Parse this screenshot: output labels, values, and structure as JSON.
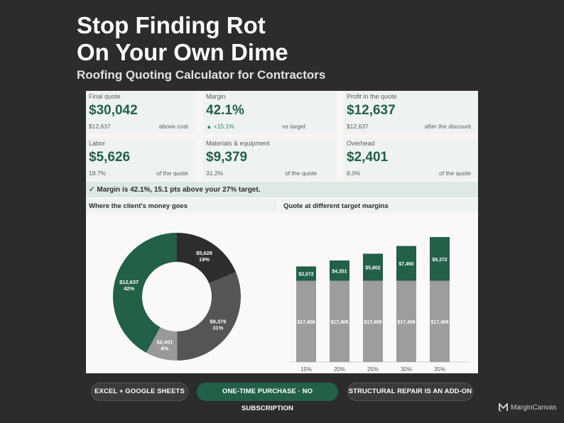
{
  "hero": {
    "title_line1": "Stop Finding Rot",
    "title_line2": "On Your Own Dime",
    "subtitle": "Roofing Quoting Calculator for Contractors"
  },
  "kpis": {
    "final_quote": {
      "label": "Final quote",
      "value": "$30,042",
      "sub_left": "$12,637",
      "sub_right": "above cost"
    },
    "margin": {
      "label": "Margin",
      "value": "42.1%",
      "sub_left": "▲ +15.1%",
      "sub_right": "vs target"
    },
    "profit": {
      "label": "Profit in the quote",
      "value": "$12,637",
      "sub_left": "$12,637",
      "sub_right": "after the discount"
    },
    "labor": {
      "label": "Labor",
      "value": "$5,626",
      "sub_left": "18.7%",
      "sub_right": "of the quote"
    },
    "materials": {
      "label": "Materials & equipment",
      "value": "$9,379",
      "sub_left": "31.2%",
      "sub_right": "of the quote"
    },
    "overhead": {
      "label": "Overhead",
      "value": "$2,401",
      "sub_left": "8.0%",
      "sub_right": "of the quote"
    }
  },
  "status": {
    "check": "✓",
    "message": "Margin is 42.1%, 15.1 pts above your 27% target."
  },
  "sections": {
    "donut_title": "Where the client's money goes",
    "bars_title": "Quote at different target margins"
  },
  "colors": {
    "green": "#226048",
    "charcoal": "#2d2d2d",
    "mid_gray": "#555555",
    "light_gray": "#999999",
    "bar_gray": "#9d9d9d"
  },
  "chart_data": [
    {
      "type": "pie",
      "title": "Where the client's money goes",
      "slices": [
        {
          "value": 5626,
          "label": "$5,626",
          "pct": "19%",
          "color": "#2d2d2d"
        },
        {
          "value": 9379,
          "label": "$9,379",
          "pct": "31%",
          "color": "#555555"
        },
        {
          "value": 2401,
          "label": "$2,401",
          "pct": "8%",
          "color": "#999999"
        },
        {
          "value": 12637,
          "label": "$12,637",
          "pct": "42%",
          "color": "#226048"
        }
      ]
    },
    {
      "type": "bar",
      "title": "Quote at different target margins",
      "categories": [
        "15%",
        "20%",
        "25%",
        "30%",
        "35%"
      ],
      "series": [
        {
          "values": [
            17406,
            17406,
            17406,
            17406,
            17406
          ],
          "labels": [
            "$17,406",
            "$17,406",
            "$17,406",
            "$17,406",
            "$17,406"
          ],
          "color": "#9d9d9d"
        },
        {
          "values": [
            3072,
            4351,
            5802,
            7460,
            9372
          ],
          "labels": [
            "$3,072",
            "$4,351",
            "$5,802",
            "$7,460",
            "$9,372"
          ],
          "color": "#226048"
        }
      ]
    }
  ],
  "pills": {
    "excel": "EXCEL + GOOGLE SHEETS",
    "purchase": "ONE-TIME PURCHASE · NO SUBSCRIPTION",
    "addon": "STRUCTURAL REPAIR IS AN ADD-ON"
  },
  "brand": {
    "name": "MarginCanvas"
  }
}
